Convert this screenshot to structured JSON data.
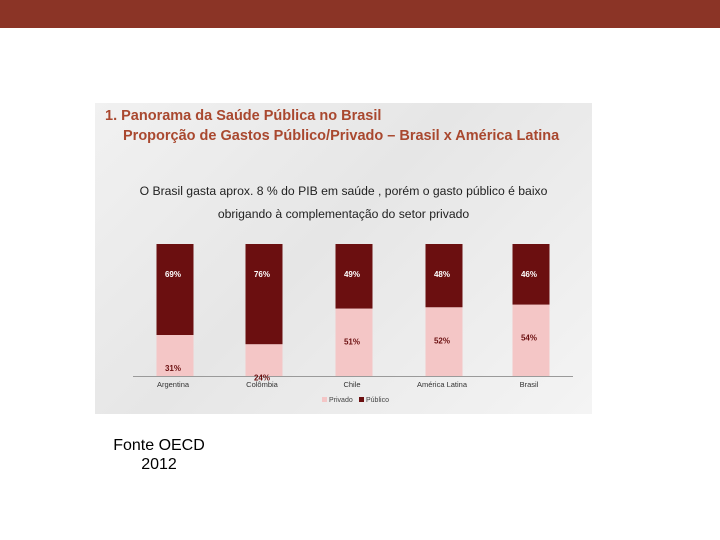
{
  "header": {
    "accent": "#8b3426"
  },
  "chart_data": {
    "type": "bar",
    "stacked": true,
    "title": "1. Panorama da Saúde Pública no Brasil",
    "subtitle": "Proporção de Gastos Público/Privado – Brasil x América Latina",
    "annotation_line1": "O Brasil gasta aprox. 8 % do PIB em saúde , porém o gasto  público é baixo",
    "annotation_line2": "obrigando à complementação do setor privado",
    "categories": [
      "Argentina",
      "Colômbia",
      "Chile",
      "América Latina",
      "Brasil"
    ],
    "series": [
      {
        "name": "Privado",
        "color": "#f4c6c6",
        "values": [
          31,
          24,
          51,
          52,
          54
        ],
        "labels": [
          "31%",
          "24%",
          "51%",
          "52%",
          "54%"
        ]
      },
      {
        "name": "Público",
        "color": "#6b0f10",
        "values": [
          69,
          76,
          49,
          48,
          46
        ],
        "labels": [
          "69%",
          "76%",
          "49%",
          "48%",
          "46%"
        ]
      }
    ],
    "ylim": [
      0,
      100
    ],
    "legend": "bottom"
  },
  "source": {
    "line1": "Fonte OECD",
    "line2": "2012"
  }
}
